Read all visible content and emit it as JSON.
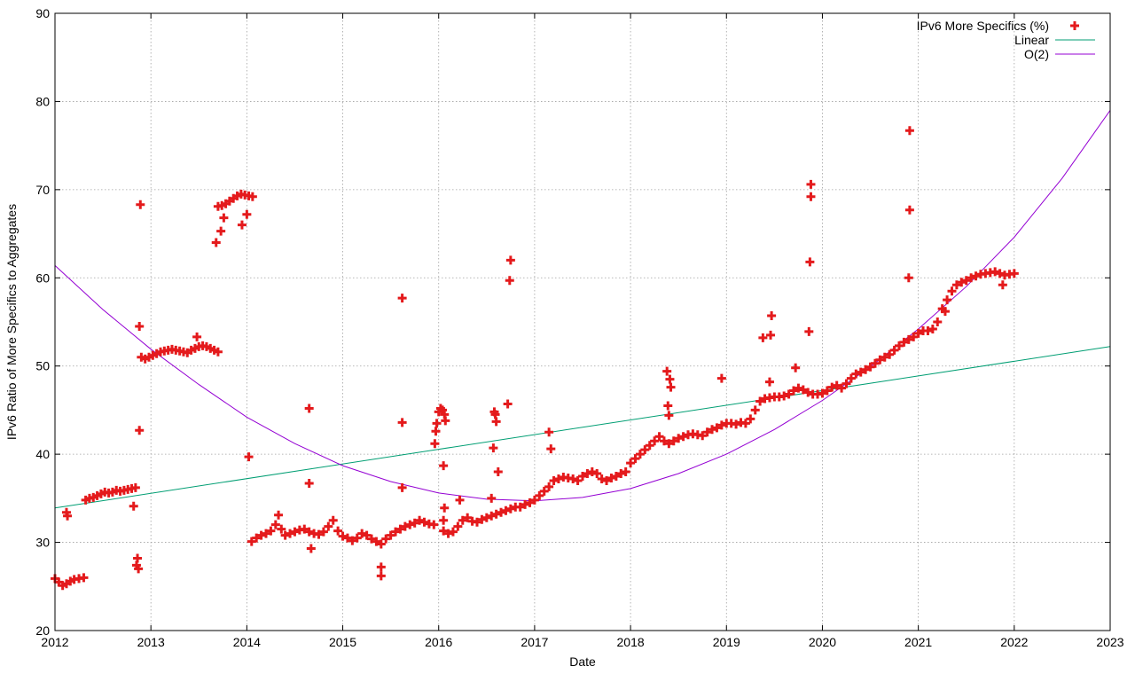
{
  "chart_data": {
    "type": "scatter",
    "xlabel": "Date",
    "ylabel": "IPv6 Ratio of More Specifics to Aggregates",
    "xlim": [
      2012,
      2023
    ],
    "ylim": [
      20,
      90
    ],
    "x_ticks": [
      "2012",
      "2013",
      "2014",
      "2015",
      "2016",
      "2017",
      "2018",
      "2019",
      "2020",
      "2021",
      "2022",
      "2023"
    ],
    "y_ticks": [
      "20",
      "30",
      "40",
      "50",
      "60",
      "70",
      "80",
      "90"
    ],
    "grid": true,
    "legend_position": "top-right",
    "series": [
      {
        "name": "IPv6 More Specifics (%)",
        "kind": "scatter",
        "marker": "plus",
        "color": "#e41a1c",
        "points": [
          [
            2012.0,
            25.9
          ],
          [
            2012.04,
            25.5
          ],
          [
            2012.08,
            25.1
          ],
          [
            2012.12,
            25.3
          ],
          [
            2012.16,
            25.6
          ],
          [
            2012.2,
            25.8
          ],
          [
            2012.25,
            25.9
          ],
          [
            2012.3,
            26.0
          ],
          [
            2012.12,
            33.4
          ],
          [
            2012.13,
            33.0
          ],
          [
            2012.32,
            34.8
          ],
          [
            2012.36,
            35.0
          ],
          [
            2012.4,
            35.1
          ],
          [
            2012.44,
            35.3
          ],
          [
            2012.48,
            35.5
          ],
          [
            2012.52,
            35.7
          ],
          [
            2012.56,
            35.6
          ],
          [
            2012.6,
            35.7
          ],
          [
            2012.64,
            35.9
          ],
          [
            2012.68,
            35.8
          ],
          [
            2012.72,
            35.9
          ],
          [
            2012.76,
            36.0
          ],
          [
            2012.8,
            36.1
          ],
          [
            2012.84,
            36.2
          ],
          [
            2012.82,
            34.1
          ],
          [
            2012.85,
            27.4
          ],
          [
            2012.86,
            28.2
          ],
          [
            2012.87,
            27.0
          ],
          [
            2012.88,
            42.7
          ],
          [
            2012.88,
            54.5
          ],
          [
            2012.89,
            68.3
          ],
          [
            2012.9,
            51.0
          ],
          [
            2012.94,
            50.8
          ],
          [
            2012.98,
            51.0
          ],
          [
            2013.02,
            51.2
          ],
          [
            2013.06,
            51.4
          ],
          [
            2013.1,
            51.6
          ],
          [
            2013.14,
            51.7
          ],
          [
            2013.18,
            51.8
          ],
          [
            2013.22,
            51.9
          ],
          [
            2013.26,
            51.8
          ],
          [
            2013.3,
            51.7
          ],
          [
            2013.34,
            51.6
          ],
          [
            2013.38,
            51.5
          ],
          [
            2013.42,
            51.8
          ],
          [
            2013.46,
            52.0
          ],
          [
            2013.5,
            52.2
          ],
          [
            2013.54,
            52.3
          ],
          [
            2013.58,
            52.2
          ],
          [
            2013.62,
            52.0
          ],
          [
            2013.66,
            51.8
          ],
          [
            2013.7,
            51.6
          ],
          [
            2013.48,
            53.3
          ],
          [
            2013.68,
            64.0
          ],
          [
            2013.7,
            68.1
          ],
          [
            2013.74,
            68.2
          ],
          [
            2013.78,
            68.4
          ],
          [
            2013.82,
            68.7
          ],
          [
            2013.86,
            69.0
          ],
          [
            2013.9,
            69.3
          ],
          [
            2013.94,
            69.5
          ],
          [
            2013.98,
            69.4
          ],
          [
            2014.02,
            69.3
          ],
          [
            2014.06,
            69.2
          ],
          [
            2013.73,
            65.3
          ],
          [
            2013.76,
            66.8
          ],
          [
            2013.95,
            66.0
          ],
          [
            2014.0,
            67.2
          ],
          [
            2014.02,
            39.7
          ],
          [
            2014.05,
            30.1
          ],
          [
            2014.1,
            30.5
          ],
          [
            2014.15,
            30.8
          ],
          [
            2014.2,
            31.0
          ],
          [
            2014.25,
            31.3
          ],
          [
            2014.3,
            32.0
          ],
          [
            2014.33,
            33.1
          ],
          [
            2014.36,
            31.5
          ],
          [
            2014.4,
            30.8
          ],
          [
            2014.45,
            31.0
          ],
          [
            2014.5,
            31.2
          ],
          [
            2014.55,
            31.4
          ],
          [
            2014.6,
            31.5
          ],
          [
            2014.65,
            31.2
          ],
          [
            2014.7,
            31.0
          ],
          [
            2014.75,
            30.9
          ],
          [
            2014.8,
            31.2
          ],
          [
            2014.85,
            31.8
          ],
          [
            2014.9,
            32.5
          ],
          [
            2014.95,
            31.3
          ],
          [
            2015.0,
            30.7
          ],
          [
            2015.05,
            30.5
          ],
          [
            2015.1,
            30.2
          ],
          [
            2015.15,
            30.5
          ],
          [
            2015.2,
            31.0
          ],
          [
            2015.25,
            30.8
          ],
          [
            2015.3,
            30.4
          ],
          [
            2015.35,
            30.1
          ],
          [
            2015.4,
            29.8
          ],
          [
            2015.45,
            30.4
          ],
          [
            2015.5,
            30.8
          ],
          [
            2015.55,
            31.2
          ],
          [
            2015.6,
            31.5
          ],
          [
            2015.65,
            31.8
          ],
          [
            2015.7,
            32.0
          ],
          [
            2015.75,
            32.2
          ],
          [
            2015.8,
            32.5
          ],
          [
            2015.85,
            32.3
          ],
          [
            2015.9,
            32.1
          ],
          [
            2015.95,
            32.0
          ],
          [
            2014.65,
            45.2
          ],
          [
            2014.65,
            36.7
          ],
          [
            2014.67,
            29.3
          ],
          [
            2015.4,
            27.2
          ],
          [
            2015.4,
            26.2
          ],
          [
            2015.62,
            36.2
          ],
          [
            2015.62,
            43.6
          ],
          [
            2015.62,
            57.7
          ],
          [
            2015.96,
            41.2
          ],
          [
            2015.97,
            42.6
          ],
          [
            2015.98,
            43.5
          ],
          [
            2016.0,
            44.8
          ],
          [
            2016.02,
            45.2
          ],
          [
            2016.04,
            45.0
          ],
          [
            2016.06,
            44.5
          ],
          [
            2016.07,
            43.8
          ],
          [
            2016.05,
            38.7
          ],
          [
            2016.06,
            33.9
          ],
          [
            2016.05,
            32.5
          ],
          [
            2016.22,
            34.8
          ],
          [
            2016.05,
            31.3
          ],
          [
            2016.1,
            31.0
          ],
          [
            2016.15,
            31.2
          ],
          [
            2016.2,
            31.8
          ],
          [
            2016.25,
            32.5
          ],
          [
            2016.3,
            32.8
          ],
          [
            2016.35,
            32.4
          ],
          [
            2016.4,
            32.3
          ],
          [
            2016.45,
            32.6
          ],
          [
            2016.5,
            32.8
          ],
          [
            2016.55,
            33.0
          ],
          [
            2016.6,
            33.2
          ],
          [
            2016.65,
            33.4
          ],
          [
            2016.7,
            33.6
          ],
          [
            2016.75,
            33.8
          ],
          [
            2016.8,
            34.0
          ],
          [
            2016.85,
            34.0
          ],
          [
            2016.9,
            34.3
          ],
          [
            2016.95,
            34.5
          ],
          [
            2017.0,
            34.8
          ],
          [
            2017.05,
            35.3
          ],
          [
            2017.1,
            35.8
          ],
          [
            2017.15,
            36.3
          ],
          [
            2016.55,
            35.0
          ],
          [
            2016.57,
            40.7
          ],
          [
            2016.58,
            44.8
          ],
          [
            2016.59,
            44.5
          ],
          [
            2016.6,
            43.7
          ],
          [
            2016.62,
            38.0
          ],
          [
            2016.72,
            45.7
          ],
          [
            2016.74,
            59.7
          ],
          [
            2016.75,
            62.0
          ],
          [
            2017.15,
            42.5
          ],
          [
            2017.17,
            40.6
          ],
          [
            2017.2,
            37.0
          ],
          [
            2017.25,
            37.2
          ],
          [
            2017.3,
            37.4
          ],
          [
            2017.35,
            37.3
          ],
          [
            2017.4,
            37.2
          ],
          [
            2017.45,
            37.0
          ],
          [
            2017.5,
            37.5
          ],
          [
            2017.55,
            37.8
          ],
          [
            2017.6,
            38.0
          ],
          [
            2017.65,
            37.8
          ],
          [
            2017.7,
            37.2
          ],
          [
            2017.75,
            37.0
          ],
          [
            2017.8,
            37.3
          ],
          [
            2017.85,
            37.5
          ],
          [
            2017.9,
            37.8
          ],
          [
            2017.95,
            38.0
          ],
          [
            2018.0,
            39.0
          ],
          [
            2018.05,
            39.5
          ],
          [
            2018.1,
            40.0
          ],
          [
            2018.15,
            40.5
          ],
          [
            2018.2,
            41.0
          ],
          [
            2018.25,
            41.5
          ],
          [
            2018.3,
            42.0
          ],
          [
            2018.35,
            41.5
          ],
          [
            2018.4,
            41.2
          ],
          [
            2018.45,
            41.5
          ],
          [
            2018.5,
            41.8
          ],
          [
            2018.55,
            42.0
          ],
          [
            2018.6,
            42.2
          ],
          [
            2018.65,
            42.3
          ],
          [
            2018.7,
            42.2
          ],
          [
            2018.75,
            42.1
          ],
          [
            2018.8,
            42.5
          ],
          [
            2018.85,
            42.8
          ],
          [
            2018.9,
            43.0
          ],
          [
            2018.95,
            43.3
          ],
          [
            2019.0,
            43.5
          ],
          [
            2019.05,
            43.5
          ],
          [
            2019.1,
            43.4
          ],
          [
            2019.15,
            43.6
          ],
          [
            2019.2,
            43.5
          ],
          [
            2019.25,
            44.0
          ],
          [
            2019.3,
            45.0
          ],
          [
            2019.35,
            46.0
          ],
          [
            2019.4,
            46.3
          ],
          [
            2019.45,
            46.4
          ],
          [
            2019.5,
            46.5
          ],
          [
            2019.55,
            46.5
          ],
          [
            2019.6,
            46.6
          ],
          [
            2019.65,
            46.8
          ],
          [
            2019.7,
            47.2
          ],
          [
            2019.75,
            47.5
          ],
          [
            2019.8,
            47.3
          ],
          [
            2019.85,
            47.0
          ],
          [
            2019.9,
            46.8
          ],
          [
            2019.95,
            46.8
          ],
          [
            2020.0,
            46.9
          ],
          [
            2020.05,
            47.2
          ],
          [
            2020.1,
            47.6
          ],
          [
            2020.15,
            47.8
          ],
          [
            2020.2,
            47.5
          ],
          [
            2020.25,
            48.0
          ],
          [
            2020.3,
            48.6
          ],
          [
            2020.35,
            49.1
          ],
          [
            2020.4,
            49.3
          ],
          [
            2020.45,
            49.6
          ],
          [
            2020.5,
            49.9
          ],
          [
            2020.55,
            50.3
          ],
          [
            2020.6,
            50.7
          ],
          [
            2020.65,
            51.0
          ],
          [
            2020.7,
            51.3
          ],
          [
            2020.75,
            51.8
          ],
          [
            2020.8,
            52.3
          ],
          [
            2020.85,
            52.7
          ],
          [
            2020.9,
            53.0
          ],
          [
            2020.95,
            53.3
          ],
          [
            2021.0,
            53.7
          ],
          [
            2021.05,
            54.0
          ],
          [
            2021.1,
            54.0
          ],
          [
            2021.15,
            54.2
          ],
          [
            2021.2,
            55.0
          ],
          [
            2021.25,
            56.5
          ],
          [
            2021.3,
            57.5
          ],
          [
            2021.35,
            58.5
          ],
          [
            2021.4,
            59.2
          ],
          [
            2021.45,
            59.5
          ],
          [
            2021.5,
            59.7
          ],
          [
            2021.55,
            60.0
          ],
          [
            2021.6,
            60.2
          ],
          [
            2021.65,
            60.4
          ],
          [
            2021.7,
            60.5
          ],
          [
            2021.75,
            60.6
          ],
          [
            2021.8,
            60.7
          ],
          [
            2021.85,
            60.5
          ],
          [
            2021.9,
            60.3
          ],
          [
            2021.95,
            60.4
          ],
          [
            2022.0,
            60.5
          ],
          [
            2018.38,
            49.4
          ],
          [
            2018.39,
            45.5
          ],
          [
            2018.4,
            44.4
          ],
          [
            2018.41,
            48.5
          ],
          [
            2018.42,
            47.6
          ],
          [
            2018.95,
            48.6
          ],
          [
            2019.38,
            53.2
          ],
          [
            2019.45,
            48.2
          ],
          [
            2019.46,
            53.5
          ],
          [
            2019.47,
            55.7
          ],
          [
            2019.72,
            49.8
          ],
          [
            2019.86,
            53.9
          ],
          [
            2019.87,
            61.8
          ],
          [
            2019.88,
            69.2
          ],
          [
            2019.88,
            70.6
          ],
          [
            2020.9,
            60.0
          ],
          [
            2020.91,
            67.7
          ],
          [
            2020.91,
            76.7
          ],
          [
            2021.28,
            56.2
          ],
          [
            2021.88,
            59.2
          ]
        ]
      },
      {
        "name": "Linear",
        "kind": "line",
        "color": "#009e73",
        "x": [
          2012,
          2023
        ],
        "y": [
          33.9,
          52.2
        ]
      },
      {
        "name": "O(2)",
        "kind": "line",
        "color": "#9400d3",
        "x": [
          2012,
          2012.5,
          2013,
          2013.5,
          2014,
          2014.5,
          2015,
          2015.5,
          2016,
          2016.5,
          2017,
          2017.5,
          2018,
          2018.5,
          2019,
          2019.5,
          2020,
          2020.5,
          2021,
          2021.5,
          2022,
          2022.5,
          2023
        ],
        "y": [
          61.4,
          56.4,
          51.9,
          47.9,
          44.2,
          41.2,
          38.7,
          36.9,
          35.6,
          34.9,
          34.7,
          35.1,
          36.1,
          37.8,
          40.0,
          42.8,
          46.1,
          49.9,
          54.2,
          59.0,
          64.6,
          71.3,
          79.0
        ]
      }
    ]
  }
}
